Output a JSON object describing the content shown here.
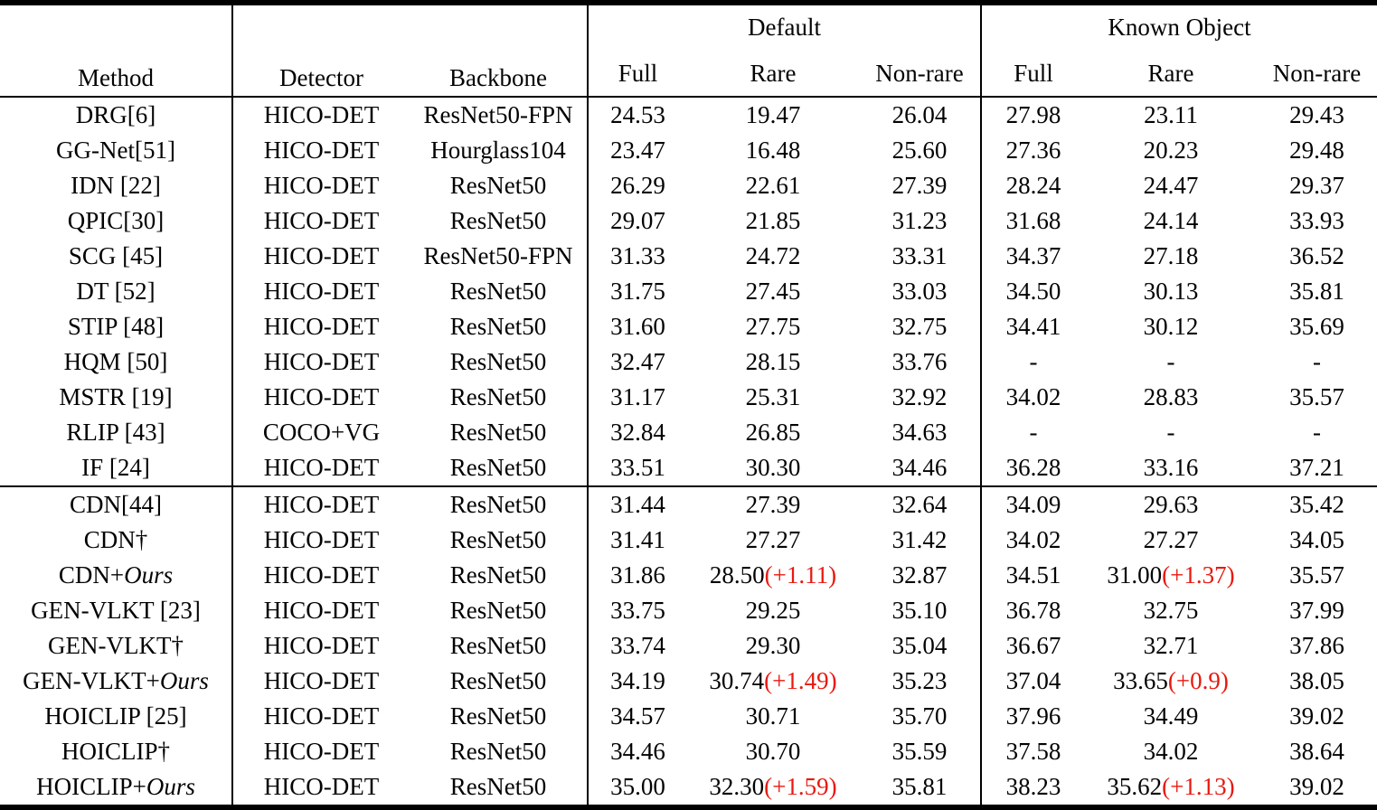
{
  "table": {
    "header": {
      "method": "Method",
      "detector": "Detector",
      "backbone": "Backbone",
      "default_group": "Default",
      "known_object_group": "Known Object",
      "sub_columns": [
        "Full",
        "Rare",
        "Non-rare"
      ]
    },
    "colors": {
      "improvement_red": "#e8190f",
      "rule_black": "#000000"
    },
    "groups": [
      [
        {
          "method": "DRG[6]",
          "method_em": "",
          "detector": "HICO-DET",
          "backbone": "ResNet50-FPN",
          "default": {
            "full": "24.53",
            "rare": "19.47",
            "rare_delta": "",
            "nonrare": "26.04"
          },
          "known": {
            "full": "27.98",
            "rare": "23.11",
            "rare_delta": "",
            "nonrare": "29.43"
          }
        },
        {
          "method": "GG-Net[51]",
          "method_em": "",
          "detector": "HICO-DET",
          "backbone": "Hourglass104",
          "default": {
            "full": "23.47",
            "rare": "16.48",
            "rare_delta": "",
            "nonrare": "25.60"
          },
          "known": {
            "full": "27.36",
            "rare": "20.23",
            "rare_delta": "",
            "nonrare": "29.48"
          }
        },
        {
          "method": "IDN [22]",
          "method_em": "",
          "detector": "HICO-DET",
          "backbone": "ResNet50",
          "default": {
            "full": "26.29",
            "rare": "22.61",
            "rare_delta": "",
            "nonrare": "27.39"
          },
          "known": {
            "full": "28.24",
            "rare": "24.47",
            "rare_delta": "",
            "nonrare": "29.37"
          }
        },
        {
          "method": "QPIC[30]",
          "method_em": "",
          "detector": "HICO-DET",
          "backbone": "ResNet50",
          "default": {
            "full": "29.07",
            "rare": "21.85",
            "rare_delta": "",
            "nonrare": "31.23"
          },
          "known": {
            "full": "31.68",
            "rare": "24.14",
            "rare_delta": "",
            "nonrare": "33.93"
          }
        },
        {
          "method": "SCG [45]",
          "method_em": "",
          "detector": "HICO-DET",
          "backbone": "ResNet50-FPN",
          "default": {
            "full": "31.33",
            "rare": "24.72",
            "rare_delta": "",
            "nonrare": "33.31"
          },
          "known": {
            "full": "34.37",
            "rare": "27.18",
            "rare_delta": "",
            "nonrare": "36.52"
          }
        },
        {
          "method": "DT [52]",
          "method_em": "",
          "detector": "HICO-DET",
          "backbone": "ResNet50",
          "default": {
            "full": "31.75",
            "rare": "27.45",
            "rare_delta": "",
            "nonrare": "33.03"
          },
          "known": {
            "full": "34.50",
            "rare": "30.13",
            "rare_delta": "",
            "nonrare": "35.81"
          }
        },
        {
          "method": "STIP [48]",
          "method_em": "",
          "detector": "HICO-DET",
          "backbone": "ResNet50",
          "default": {
            "full": "31.60",
            "rare": "27.75",
            "rare_delta": "",
            "nonrare": "32.75"
          },
          "known": {
            "full": "34.41",
            "rare": "30.12",
            "rare_delta": "",
            "nonrare": "35.69"
          }
        },
        {
          "method": "HQM [50]",
          "method_em": "",
          "detector": "HICO-DET",
          "backbone": "ResNet50",
          "default": {
            "full": "32.47",
            "rare": "28.15",
            "rare_delta": "",
            "nonrare": "33.76"
          },
          "known": {
            "full": "-",
            "rare": "-",
            "rare_delta": "",
            "nonrare": "-"
          }
        },
        {
          "method": "MSTR [19]",
          "method_em": "",
          "detector": "HICO-DET",
          "backbone": "ResNet50",
          "default": {
            "full": "31.17",
            "rare": "25.31",
            "rare_delta": "",
            "nonrare": "32.92"
          },
          "known": {
            "full": "34.02",
            "rare": "28.83",
            "rare_delta": "",
            "nonrare": "35.57"
          }
        },
        {
          "method": "RLIP [43]",
          "method_em": "",
          "detector": "COCO+VG",
          "backbone": "ResNet50",
          "default": {
            "full": "32.84",
            "rare": "26.85",
            "rare_delta": "",
            "nonrare": "34.63"
          },
          "known": {
            "full": "-",
            "rare": "-",
            "rare_delta": "",
            "nonrare": "-"
          }
        },
        {
          "method": "IF [24]",
          "method_em": "",
          "detector": "HICO-DET",
          "backbone": "ResNet50",
          "default": {
            "full": "33.51",
            "rare": "30.30",
            "rare_delta": "",
            "nonrare": "34.46"
          },
          "known": {
            "full": "36.28",
            "rare": "33.16",
            "rare_delta": "",
            "nonrare": "37.21"
          }
        }
      ],
      [
        {
          "method": "CDN[44]",
          "method_em": "",
          "detector": "HICO-DET",
          "backbone": "ResNet50",
          "default": {
            "full": "31.44",
            "rare": "27.39",
            "rare_delta": "",
            "nonrare": "32.64"
          },
          "known": {
            "full": "34.09",
            "rare": "29.63",
            "rare_delta": "",
            "nonrare": "35.42"
          }
        },
        {
          "method": "CDN†",
          "method_em": "",
          "detector": "HICO-DET",
          "backbone": "ResNet50",
          "default": {
            "full": "31.41",
            "rare": "27.27",
            "rare_delta": "",
            "nonrare": "31.42"
          },
          "known": {
            "full": "34.02",
            "rare": "27.27",
            "rare_delta": "",
            "nonrare": "34.05"
          }
        },
        {
          "method": "CDN+",
          "method_em": "Ours",
          "detector": "HICO-DET",
          "backbone": "ResNet50",
          "default": {
            "full": "31.86",
            "rare": "28.50",
            "rare_delta": "(+1.11)",
            "nonrare": "32.87"
          },
          "known": {
            "full": "34.51",
            "rare": "31.00",
            "rare_delta": "(+1.37)",
            "nonrare": "35.57"
          }
        },
        {
          "method": "GEN-VLKT [23]",
          "method_em": "",
          "detector": "HICO-DET",
          "backbone": "ResNet50",
          "default": {
            "full": "33.75",
            "rare": "29.25",
            "rare_delta": "",
            "nonrare": "35.10"
          },
          "known": {
            "full": "36.78",
            "rare": "32.75",
            "rare_delta": "",
            "nonrare": "37.99"
          }
        },
        {
          "method": "GEN-VLKT†",
          "method_em": "",
          "detector": "HICO-DET",
          "backbone": "ResNet50",
          "default": {
            "full": "33.74",
            "rare": "29.30",
            "rare_delta": "",
            "nonrare": "35.04"
          },
          "known": {
            "full": "36.67",
            "rare": "32.71",
            "rare_delta": "",
            "nonrare": "37.86"
          }
        },
        {
          "method": "GEN-VLKT+",
          "method_em": "Ours",
          "detector": "HICO-DET",
          "backbone": "ResNet50",
          "default": {
            "full": "34.19",
            "rare": "30.74",
            "rare_delta": "(+1.49)",
            "nonrare": "35.23"
          },
          "known": {
            "full": "37.04",
            "rare": "33.65",
            "rare_delta": "(+0.9)",
            "nonrare": "38.05"
          }
        },
        {
          "method": "HOICLIP [25]",
          "method_em": "",
          "detector": "HICO-DET",
          "backbone": "ResNet50",
          "default": {
            "full": "34.57",
            "rare": "30.71",
            "rare_delta": "",
            "nonrare": "35.70"
          },
          "known": {
            "full": "37.96",
            "rare": "34.49",
            "rare_delta": "",
            "nonrare": "39.02"
          }
        },
        {
          "method": "HOICLIP†",
          "method_em": "",
          "detector": "HICO-DET",
          "backbone": "ResNet50",
          "default": {
            "full": "34.46",
            "rare": "30.70",
            "rare_delta": "",
            "nonrare": "35.59"
          },
          "known": {
            "full": "37.58",
            "rare": "34.02",
            "rare_delta": "",
            "nonrare": "38.64"
          }
        },
        {
          "method": "HOICLIP+",
          "method_em": "Ours",
          "detector": "HICO-DET",
          "backbone": "ResNet50",
          "default": {
            "full": "35.00",
            "rare": "32.30",
            "rare_delta": "(+1.59)",
            "nonrare": "35.81"
          },
          "known": {
            "full": "38.23",
            "rare": "35.62",
            "rare_delta": "(+1.13)",
            "nonrare": "39.02"
          }
        }
      ]
    ]
  }
}
